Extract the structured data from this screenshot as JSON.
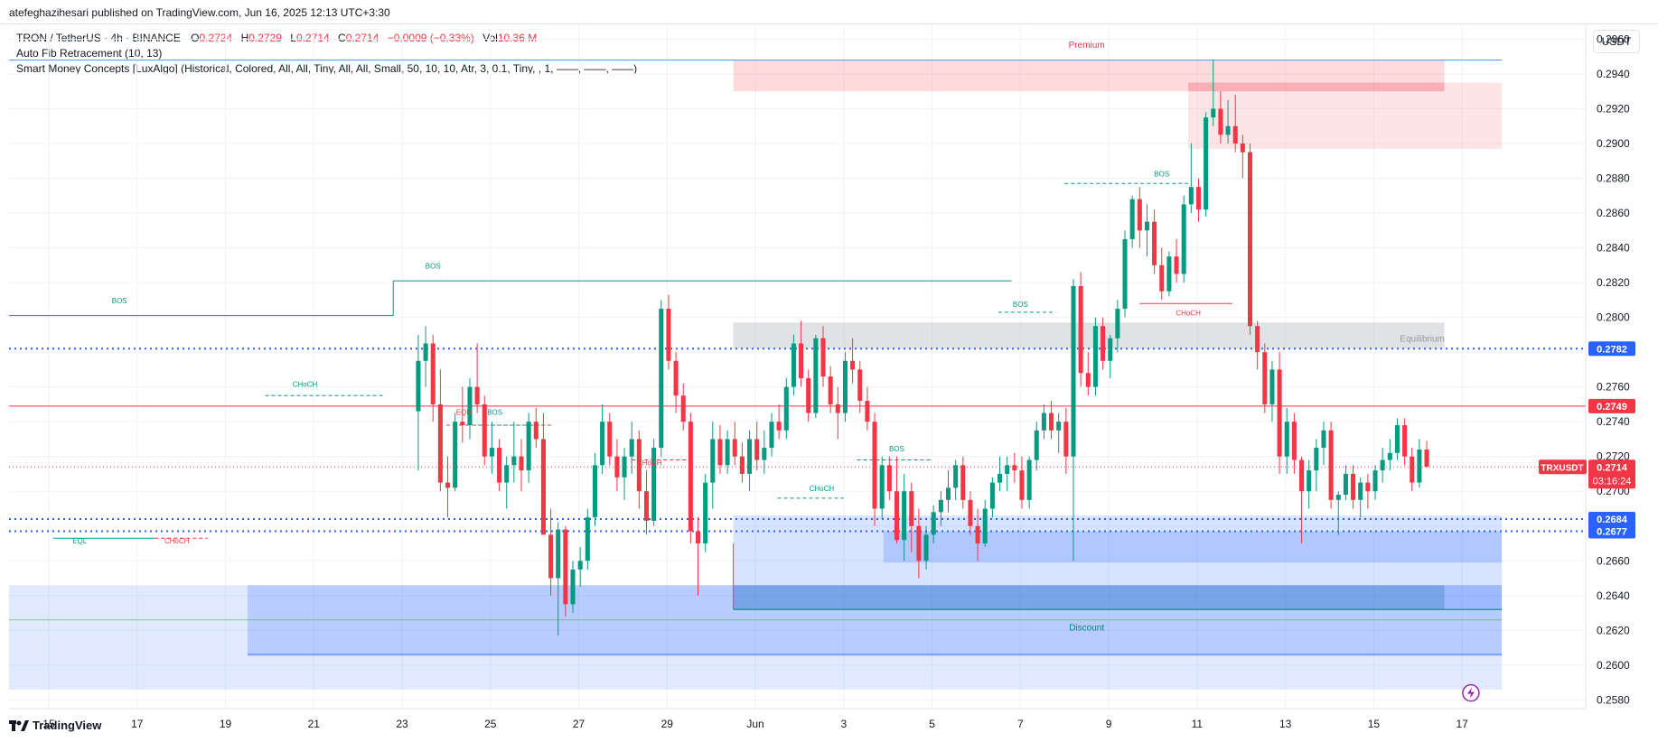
{
  "header": {
    "publisher_line": "atefeghazihesari published on TradingView.com, Jun 16, 2025 12:13 UTC+3:30"
  },
  "legend": {
    "symbol": "TRON / TetherUS · 4h · BINANCE",
    "o_label": "O",
    "o_value": "0.2724",
    "h_label": "H",
    "h_value": "0.2729",
    "l_label": "L",
    "l_value": "0.2714",
    "c_label": "C",
    "c_value": "0.2714",
    "change": "−0.0009 (−0.33%)",
    "vol_label": "Vol",
    "vol_value": "10.36 M",
    "indicator1": "Auto Fib Retracement (10, 13)",
    "indicator2": "Smart Money Concepts [LuxAlgo] (Historical, Colored, All, All, Tiny, All, All, Small, 50, 10, 10, Atr, 3, 0.1, Tiny, , 1, ——, ——, ——)"
  },
  "currency": "USDT",
  "footer": {
    "brand": "TradingView"
  },
  "colors": {
    "up": "#089981",
    "down": "#f23645",
    "level_blue": "#2962ff",
    "premium": "#f23645",
    "discount": "#2962ff"
  },
  "chart_data": {
    "type": "candlestick",
    "title": "",
    "y_ticks": [
      "0.2580",
      "0.2600",
      "0.2620",
      "0.2640",
      "0.2660",
      "0.2680",
      "0.2700",
      "0.2720",
      "0.2740",
      "0.2760",
      "0.2780",
      "0.2800",
      "0.2820",
      "0.2840",
      "0.2860",
      "0.2880",
      "0.2900",
      "0.2920",
      "0.2940",
      "0.2960"
    ],
    "x_ticks": [
      {
        "label": "15",
        "day": -16
      },
      {
        "label": "17",
        "day": -14
      },
      {
        "label": "19",
        "day": -12
      },
      {
        "label": "21",
        "day": -10
      },
      {
        "label": "23",
        "day": -8
      },
      {
        "label": "25",
        "day": -6
      },
      {
        "label": "27",
        "day": -4
      },
      {
        "label": "29",
        "day": -2
      },
      {
        "label": "Jun",
        "day": 0
      },
      {
        "label": "3",
        "day": 2
      },
      {
        "label": "5",
        "day": 4
      },
      {
        "label": "7",
        "day": 6
      },
      {
        "label": "9",
        "day": 8
      },
      {
        "label": "11",
        "day": 10
      },
      {
        "label": "13",
        "day": 12
      },
      {
        "label": "15",
        "day": 14
      },
      {
        "label": "17",
        "day": 16
      }
    ],
    "ylim": [
      0.2575,
      0.2968
    ],
    "xlim_days": [
      -16.9,
      18.8
    ],
    "price_badges": [
      {
        "value": "0.2782",
        "color": "#2962ff"
      },
      {
        "value": "0.2749",
        "color": "#f23645"
      },
      {
        "value": "0.2684",
        "color": "#2962ff"
      },
      {
        "value": "0.2677",
        "color": "#2962ff"
      }
    ],
    "current": {
      "symbol": "TRXUSDT",
      "price": "0.2714",
      "countdown": "03:16:24",
      "color": "#f23645"
    },
    "zone_labels": {
      "premium": "Premium",
      "equilibrium": "Equilibrium",
      "discount": "Discount"
    },
    "structure_labels": [
      {
        "text": "BOS",
        "day": -14.4,
        "price": 0.2808,
        "color": "#089981"
      },
      {
        "text": "BOS",
        "day": -7.3,
        "price": 0.2828,
        "color": "#089981"
      },
      {
        "text": "CHoCH",
        "day": -10.2,
        "price": 0.276,
        "color": "#089981"
      },
      {
        "text": "EQH",
        "day": -6.6,
        "price": 0.2744,
        "color": "#f23645"
      },
      {
        "text": "BOS",
        "day": -5.9,
        "price": 0.2744,
        "color": "#089981"
      },
      {
        "text": "CHoCH",
        "day": -2.4,
        "price": 0.2715,
        "color": "#f23645"
      },
      {
        "text": "EQL",
        "day": -15.3,
        "price": 0.267,
        "color": "#089981"
      },
      {
        "text": "CHoCH",
        "day": -13.1,
        "price": 0.267,
        "color": "#f23645"
      },
      {
        "text": "CHoCH",
        "day": 1.5,
        "price": 0.27,
        "color": "#089981"
      },
      {
        "text": "BOS",
        "day": 3.2,
        "price": 0.2723,
        "color": "#089981"
      },
      {
        "text": "BOS",
        "day": 6.0,
        "price": 0.2806,
        "color": "#089981"
      },
      {
        "text": "BOS",
        "day": 9.2,
        "price": 0.2881,
        "color": "#089981"
      },
      {
        "text": "CHoCH",
        "day": 9.8,
        "price": 0.2801,
        "color": "#f23645"
      }
    ],
    "series": [
      {
        "name": "TRXUSDT",
        "type": "ohlc",
        "values": [
          [
            0.2746,
            0.279,
            0.2712,
            0.2775
          ],
          [
            0.2775,
            0.2795,
            0.276,
            0.2785
          ],
          [
            0.2785,
            0.279,
            0.274,
            0.275
          ],
          [
            0.275,
            0.277,
            0.27,
            0.2705
          ],
          [
            0.2705,
            0.272,
            0.2685,
            0.2702
          ],
          [
            0.2702,
            0.2745,
            0.27,
            0.274
          ],
          [
            0.274,
            0.276,
            0.2728,
            0.2738
          ],
          [
            0.2738,
            0.2765,
            0.273,
            0.276
          ],
          [
            0.276,
            0.2785,
            0.2745,
            0.275
          ],
          [
            0.275,
            0.2755,
            0.2715,
            0.272
          ],
          [
            0.272,
            0.274,
            0.271,
            0.2725
          ],
          [
            0.2725,
            0.273,
            0.27,
            0.2705
          ],
          [
            0.2705,
            0.272,
            0.269,
            0.2715
          ],
          [
            0.2715,
            0.274,
            0.2705,
            0.272
          ],
          [
            0.272,
            0.273,
            0.27,
            0.2712
          ],
          [
            0.2712,
            0.2745,
            0.2705,
            0.274
          ],
          [
            0.274,
            0.2748,
            0.2725,
            0.273
          ],
          [
            0.273,
            0.2745,
            0.2695,
            0.2675
          ],
          [
            0.2675,
            0.269,
            0.264,
            0.265
          ],
          [
            0.265,
            0.2682,
            0.2617,
            0.2678
          ],
          [
            0.2678,
            0.268,
            0.2628,
            0.2635
          ],
          [
            0.2635,
            0.266,
            0.263,
            0.2655
          ],
          [
            0.2655,
            0.2668,
            0.2645,
            0.266
          ],
          [
            0.266,
            0.269,
            0.2655,
            0.2685
          ],
          [
            0.2685,
            0.2722,
            0.268,
            0.2715
          ],
          [
            0.2715,
            0.275,
            0.271,
            0.274
          ],
          [
            0.274,
            0.2745,
            0.2715,
            0.272
          ],
          [
            0.272,
            0.273,
            0.27,
            0.2708
          ],
          [
            0.2708,
            0.2725,
            0.2695,
            0.272
          ],
          [
            0.272,
            0.274,
            0.271,
            0.273
          ],
          [
            0.273,
            0.2735,
            0.269,
            0.27
          ],
          [
            0.27,
            0.2712,
            0.2675,
            0.2683
          ],
          [
            0.2683,
            0.273,
            0.268,
            0.2725
          ],
          [
            0.2725,
            0.281,
            0.272,
            0.2805
          ],
          [
            0.2805,
            0.2813,
            0.277,
            0.2775
          ],
          [
            0.2775,
            0.278,
            0.2745,
            0.2755
          ],
          [
            0.2755,
            0.2762,
            0.2735,
            0.274
          ],
          [
            0.274,
            0.2745,
            0.267,
            0.2677
          ],
          [
            0.2677,
            0.2685,
            0.264,
            0.267
          ],
          [
            0.267,
            0.271,
            0.2665,
            0.2705
          ],
          [
            0.2705,
            0.274,
            0.269,
            0.273
          ],
          [
            0.273,
            0.2738,
            0.271,
            0.2715
          ],
          [
            0.2715,
            0.2735,
            0.271,
            0.273
          ],
          [
            0.273,
            0.274,
            0.2715,
            0.272
          ],
          [
            0.272,
            0.2728,
            0.2705,
            0.271
          ],
          [
            0.271,
            0.2735,
            0.27,
            0.273
          ],
          [
            0.273,
            0.274,
            0.2712,
            0.2718
          ],
          [
            0.2718,
            0.2735,
            0.271,
            0.2725
          ],
          [
            0.2725,
            0.2745,
            0.272,
            0.274
          ],
          [
            0.274,
            0.275,
            0.273,
            0.2735
          ],
          [
            0.2735,
            0.2765,
            0.273,
            0.276
          ],
          [
            0.276,
            0.279,
            0.2755,
            0.2785
          ],
          [
            0.2785,
            0.2798,
            0.276,
            0.2765
          ],
          [
            0.2765,
            0.277,
            0.274,
            0.2745
          ],
          [
            0.2745,
            0.279,
            0.2742,
            0.2788
          ],
          [
            0.2788,
            0.2795,
            0.276,
            0.2766
          ],
          [
            0.2766,
            0.2772,
            0.2745,
            0.275
          ],
          [
            0.275,
            0.276,
            0.273,
            0.2745
          ],
          [
            0.2745,
            0.278,
            0.274,
            0.2775
          ],
          [
            0.2775,
            0.2788,
            0.2762,
            0.277
          ],
          [
            0.277,
            0.2775,
            0.2745,
            0.2752
          ],
          [
            0.2752,
            0.276,
            0.2735,
            0.274
          ],
          [
            0.274,
            0.2745,
            0.268,
            0.269
          ],
          [
            0.269,
            0.272,
            0.2684,
            0.2715
          ],
          [
            0.2715,
            0.272,
            0.2695,
            0.27
          ],
          [
            0.27,
            0.272,
            0.267,
            0.2672
          ],
          [
            0.2672,
            0.271,
            0.266,
            0.27
          ],
          [
            0.27,
            0.2705,
            0.2665,
            0.268
          ],
          [
            0.268,
            0.269,
            0.265,
            0.266
          ],
          [
            0.266,
            0.268,
            0.2655,
            0.2675
          ],
          [
            0.2675,
            0.2692,
            0.267,
            0.2688
          ],
          [
            0.2688,
            0.27,
            0.268,
            0.2695
          ],
          [
            0.2695,
            0.2712,
            0.2688,
            0.2702
          ],
          [
            0.2702,
            0.2718,
            0.2695,
            0.2715
          ],
          [
            0.2715,
            0.272,
            0.269,
            0.2695
          ],
          [
            0.2695,
            0.27,
            0.2675,
            0.268
          ],
          [
            0.268,
            0.269,
            0.266,
            0.267
          ],
          [
            0.267,
            0.2695,
            0.2668,
            0.269
          ],
          [
            0.269,
            0.2708,
            0.2685,
            0.2705
          ],
          [
            0.2705,
            0.272,
            0.27,
            0.271
          ],
          [
            0.271,
            0.272,
            0.27,
            0.2715
          ],
          [
            0.2715,
            0.2722,
            0.2705,
            0.2712
          ],
          [
            0.2712,
            0.272,
            0.269,
            0.2695
          ],
          [
            0.2695,
            0.272,
            0.269,
            0.2718
          ],
          [
            0.2718,
            0.274,
            0.2712,
            0.2735
          ],
          [
            0.2735,
            0.275,
            0.273,
            0.2745
          ],
          [
            0.2745,
            0.2752,
            0.273,
            0.2735
          ],
          [
            0.2735,
            0.2745,
            0.2722,
            0.274
          ],
          [
            0.274,
            0.2748,
            0.271,
            0.272
          ],
          [
            0.272,
            0.2822,
            0.266,
            0.2818
          ],
          [
            0.2818,
            0.2826,
            0.276,
            0.2768
          ],
          [
            0.2768,
            0.278,
            0.2755,
            0.276
          ],
          [
            0.276,
            0.28,
            0.2755,
            0.2795
          ],
          [
            0.2795,
            0.28,
            0.277,
            0.2775
          ],
          [
            0.2775,
            0.279,
            0.2765,
            0.2788
          ],
          [
            0.2788,
            0.281,
            0.278,
            0.2805
          ],
          [
            0.2805,
            0.285,
            0.28,
            0.2845
          ],
          [
            0.2845,
            0.287,
            0.284,
            0.2868
          ],
          [
            0.2868,
            0.2875,
            0.284,
            0.285
          ],
          [
            0.285,
            0.2865,
            0.2835,
            0.2855
          ],
          [
            0.2855,
            0.2862,
            0.2825,
            0.283
          ],
          [
            0.283,
            0.284,
            0.281,
            0.2815
          ],
          [
            0.2815,
            0.2838,
            0.2812,
            0.2835
          ],
          [
            0.2835,
            0.2845,
            0.282,
            0.2825
          ],
          [
            0.2825,
            0.287,
            0.282,
            0.2865
          ],
          [
            0.2865,
            0.29,
            0.286,
            0.2875
          ],
          [
            0.2875,
            0.288,
            0.2855,
            0.2862
          ],
          [
            0.2862,
            0.2918,
            0.2858,
            0.2915
          ],
          [
            0.2915,
            0.2948,
            0.291,
            0.292
          ],
          [
            0.292,
            0.293,
            0.29,
            0.2905
          ],
          [
            0.2905,
            0.2925,
            0.29,
            0.291
          ],
          [
            0.291,
            0.2928,
            0.2895,
            0.29
          ],
          [
            0.29,
            0.2905,
            0.288,
            0.2895
          ],
          [
            0.2895,
            0.29,
            0.279,
            0.2795
          ],
          [
            0.2795,
            0.2798,
            0.277,
            0.278
          ],
          [
            0.278,
            0.2785,
            0.2745,
            0.275
          ],
          [
            0.275,
            0.2775,
            0.274,
            0.277
          ],
          [
            0.277,
            0.278,
            0.271,
            0.272
          ],
          [
            0.272,
            0.2748,
            0.271,
            0.274
          ],
          [
            0.274,
            0.2745,
            0.271,
            0.2718
          ],
          [
            0.2718,
            0.272,
            0.267,
            0.27
          ],
          [
            0.27,
            0.2718,
            0.269,
            0.2712
          ],
          [
            0.2712,
            0.273,
            0.27,
            0.2725
          ],
          [
            0.2725,
            0.274,
            0.2715,
            0.2735
          ],
          [
            0.2735,
            0.274,
            0.269,
            0.2695
          ],
          [
            0.2695,
            0.27,
            0.2675,
            0.2698
          ],
          [
            0.2698,
            0.2715,
            0.2695,
            0.271
          ],
          [
            0.271,
            0.2715,
            0.269,
            0.2695
          ],
          [
            0.2695,
            0.2708,
            0.2685,
            0.2705
          ],
          [
            0.2705,
            0.271,
            0.269,
            0.27
          ],
          [
            0.27,
            0.2715,
            0.2695,
            0.2712
          ],
          [
            0.2712,
            0.2725,
            0.2705,
            0.2718
          ],
          [
            0.2718,
            0.273,
            0.2712,
            0.2722
          ],
          [
            0.2722,
            0.2742,
            0.2718,
            0.2738
          ],
          [
            0.2738,
            0.2742,
            0.2715,
            0.272
          ],
          [
            0.272,
            0.2725,
            0.27,
            0.2705
          ],
          [
            0.2705,
            0.273,
            0.2702,
            0.2724
          ],
          [
            0.2724,
            0.2729,
            0.2714,
            0.2714
          ]
        ]
      }
    ]
  }
}
